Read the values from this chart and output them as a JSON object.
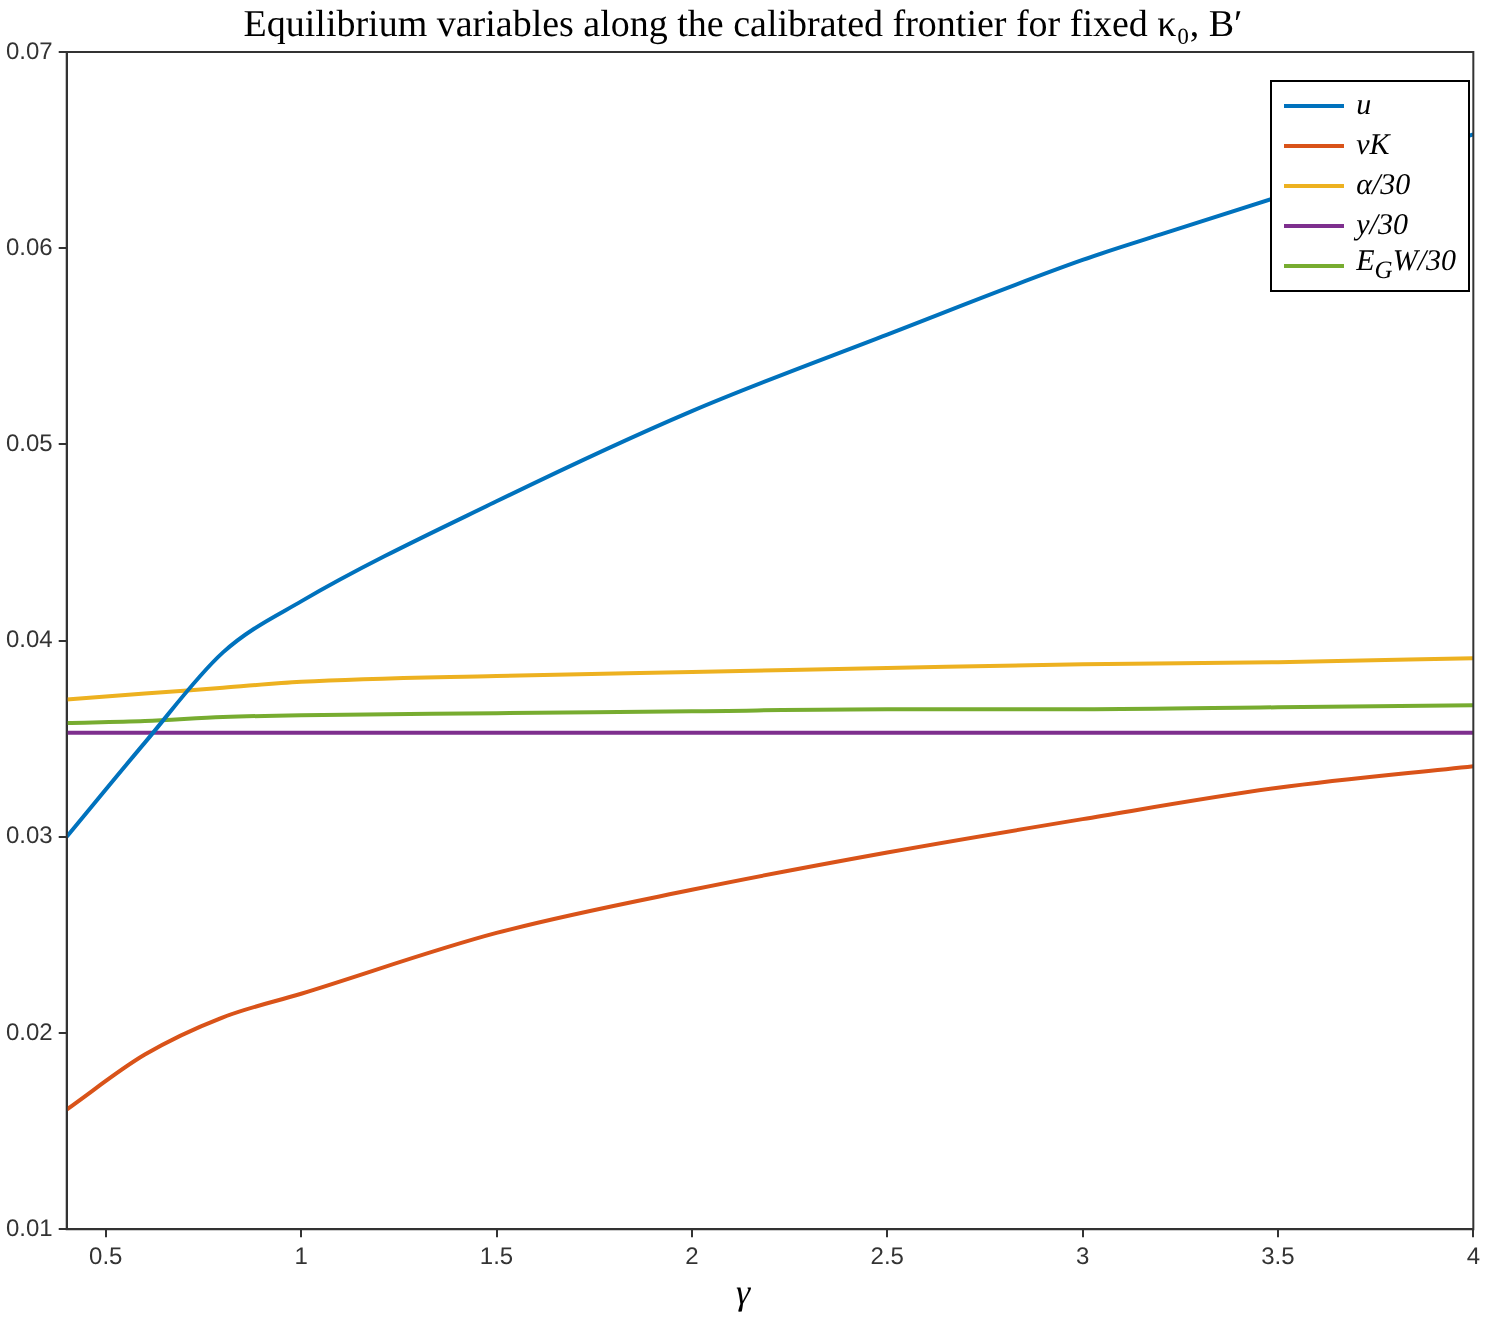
{
  "chart_data": {
    "type": "line",
    "title": "Equilibrium variables along the calibrated frontier for fixed κ₀, B′",
    "xlabel": "γ",
    "x": [
      0.4,
      0.6,
      0.8,
      1,
      1.5,
      2,
      2.5,
      3,
      3.5,
      4
    ],
    "series": [
      {
        "name": "u",
        "color": "#0072bd",
        "x": [
          0.4,
          0.6,
          0.8,
          1,
          1.5,
          2,
          2.5,
          3,
          3.2,
          4
        ],
        "values": [
          0.03,
          0.0348,
          0.0394,
          0.042,
          0.0471,
          0.0517,
          0.0556,
          0.0594,
          0.0607,
          0.0658
        ]
      },
      {
        "name": "vK",
        "color": "#d95319",
        "values": [
          0.0161,
          0.0189,
          0.0208,
          0.022,
          0.0251,
          0.0273,
          0.0292,
          0.0309,
          0.0325,
          0.0336
        ]
      },
      {
        "name": "α/30",
        "color": "#edb120",
        "values": [
          0.037,
          0.0373,
          0.0376,
          0.0379,
          0.0382,
          0.0384,
          0.0386,
          0.0388,
          0.0389,
          0.0391
        ]
      },
      {
        "name": "y/30",
        "color": "#7e2f8e",
        "values": [
          0.0353,
          0.0353,
          0.0353,
          0.0353,
          0.0353,
          0.0353,
          0.0353,
          0.0353,
          0.0353,
          0.0353
        ]
      },
      {
        "name": "E$_{G}$W/30",
        "color": "#77ac30",
        "values": [
          0.0358,
          0.0359,
          0.0361,
          0.0362,
          0.0363,
          0.0364,
          0.0365,
          0.0365,
          0.0366,
          0.0367
        ]
      }
    ],
    "xlim": [
      0.4,
      4
    ],
    "xticks": [
      0.5,
      1,
      1.5,
      2,
      2.5,
      3,
      3.5,
      4
    ],
    "ylim": [
      0.01,
      0.07
    ],
    "yticks": [
      0.01,
      0.02,
      0.03,
      0.04,
      0.05,
      0.06,
      0.07
    ],
    "grid": false,
    "legend": "top right",
    "marker": "none",
    "line_style": "solid"
  }
}
